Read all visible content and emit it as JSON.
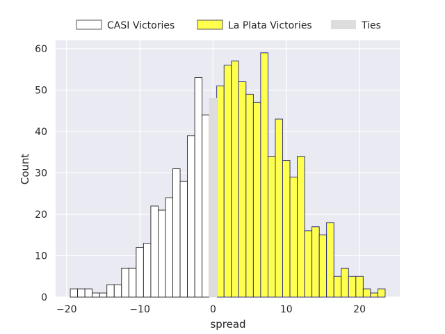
{
  "chart_data": {
    "type": "bar",
    "xlabel": "spread",
    "ylabel": "Count",
    "xlim": [
      -21.5,
      25.5
    ],
    "ylim": [
      0,
      62
    ],
    "xticks": [
      -20,
      -10,
      0,
      10,
      20
    ],
    "yticks": [
      0,
      10,
      20,
      30,
      40,
      50,
      60
    ],
    "grid": true,
    "legend_position": "top",
    "bin_width": 1,
    "series": [
      {
        "name": "CASI Victories",
        "fill": "#ffffff",
        "edge": "#222222",
        "x": [
          -19,
          -18,
          -17,
          -16,
          -15,
          -14,
          -13,
          -12,
          -11,
          -10,
          -9,
          -8,
          -7,
          -6,
          -5,
          -4,
          -3,
          -2,
          -1
        ],
        "values": [
          2,
          2,
          2,
          1,
          1,
          3,
          3,
          7,
          7,
          12,
          13,
          22,
          21,
          24,
          31,
          28,
          39,
          53,
          44
        ]
      },
      {
        "name": "La Plata Victories",
        "fill": "#ffff4d",
        "edge": "#1f1f7a",
        "x": [
          1,
          2,
          3,
          4,
          5,
          6,
          7,
          8,
          9,
          10,
          11,
          12,
          13,
          14,
          15,
          16,
          17,
          18,
          19,
          20,
          21,
          22,
          23
        ],
        "values": [
          51,
          56,
          57,
          52,
          49,
          47,
          59,
          34,
          43,
          33,
          29,
          34,
          16,
          17,
          15,
          18,
          5,
          7,
          5,
          5,
          2,
          1,
          2
        ]
      },
      {
        "name": "Ties",
        "fill": "#dddddd",
        "edge": "#dddddd",
        "x": [
          0
        ],
        "values": [
          48
        ]
      }
    ]
  }
}
